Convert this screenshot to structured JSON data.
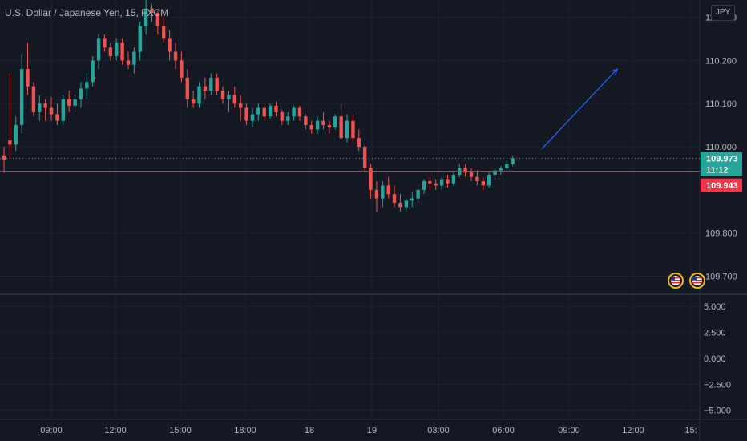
{
  "title": "U.S. Dollar / Japanese Yen, 15, FXCM",
  "currency_button": "JPY",
  "price_badge": {
    "value": "109.973",
    "countdown": "11:12",
    "color": "#26a69a"
  },
  "line_badge": {
    "value": "109.943",
    "color": "#f23645"
  },
  "colors": {
    "up": "#26a69a",
    "down": "#ef5350",
    "background": "#141822",
    "grid": "#1e2230",
    "arrow": "#2962ff"
  },
  "icons": [
    "us-flag-event-icon",
    "us-flag-event-icon"
  ],
  "chart_data": [
    {
      "type": "candlestick",
      "series": [
        {
          "candles": [
            [
              109.98,
              110.0,
              109.94,
              109.97
            ],
            [
              110.015,
              110.17,
              109.975,
              110.005
            ],
            [
              110.005,
              110.07,
              109.99,
              110.05
            ],
            [
              110.05,
              110.215,
              110.03,
              110.18
            ],
            [
              110.18,
              110.24,
              110.12,
              110.14
            ],
            [
              110.14,
              110.15,
              110.07,
              110.08
            ],
            [
              110.08,
              110.12,
              110.06,
              110.1
            ],
            [
              110.1,
              110.11,
              110.06,
              110.09
            ],
            [
              110.09,
              110.115,
              110.06,
              110.075
            ],
            [
              110.075,
              110.1,
              110.05,
              110.06
            ],
            [
              110.06,
              110.12,
              110.05,
              110.11
            ],
            [
              110.11,
              110.13,
              110.08,
              110.095
            ],
            [
              110.095,
              110.12,
              110.08,
              110.11
            ],
            [
              110.11,
              110.15,
              110.09,
              110.135
            ],
            [
              110.135,
              110.17,
              110.11,
              110.15
            ],
            [
              110.15,
              110.21,
              110.14,
              110.2
            ],
            [
              110.2,
              110.26,
              110.18,
              110.25
            ],
            [
              110.25,
              110.26,
              110.22,
              110.23
            ],
            [
              110.23,
              110.24,
              110.2,
              110.21
            ],
            [
              110.21,
              110.25,
              110.2,
              110.24
            ],
            [
              110.24,
              110.25,
              110.19,
              110.2
            ],
            [
              110.2,
              110.22,
              110.18,
              110.19
            ],
            [
              110.19,
              110.23,
              110.17,
              110.22
            ],
            [
              110.22,
              110.29,
              110.2,
              110.28
            ],
            [
              110.28,
              110.34,
              110.26,
              110.32
            ],
            [
              110.32,
              110.33,
              110.29,
              110.31
            ],
            [
              110.31,
              110.315,
              110.26,
              110.28
            ],
            [
              110.28,
              110.3,
              110.24,
              110.25
            ],
            [
              110.25,
              110.27,
              110.2,
              110.22
            ],
            [
              110.22,
              110.24,
              110.18,
              110.2
            ],
            [
              110.2,
              110.22,
              110.15,
              110.16
            ],
            [
              110.16,
              110.18,
              110.09,
              110.11
            ],
            [
              110.11,
              110.13,
              110.09,
              110.1
            ],
            [
              110.1,
              110.15,
              110.09,
              110.14
            ],
            [
              110.14,
              110.16,
              110.11,
              110.13
            ],
            [
              110.13,
              110.17,
              110.12,
              110.16
            ],
            [
              110.16,
              110.17,
              110.12,
              110.13
            ],
            [
              110.13,
              110.14,
              110.1,
              110.11
            ],
            [
              110.11,
              110.13,
              110.08,
              110.12
            ],
            [
              110.12,
              110.14,
              110.09,
              110.1
            ],
            [
              110.1,
              110.12,
              110.06,
              110.09
            ],
            [
              110.09,
              110.1,
              110.05,
              110.06
            ],
            [
              110.06,
              110.09,
              110.045,
              110.075
            ],
            [
              110.075,
              110.1,
              110.06,
              110.09
            ],
            [
              110.09,
              110.095,
              110.06,
              110.07
            ],
            [
              110.07,
              110.1,
              110.065,
              110.095
            ],
            [
              110.095,
              110.105,
              110.07,
              110.08
            ],
            [
              110.08,
              110.085,
              110.05,
              110.06
            ],
            [
              110.06,
              110.08,
              110.05,
              110.07
            ],
            [
              110.07,
              110.095,
              110.06,
              110.09
            ],
            [
              110.09,
              110.095,
              110.06,
              110.07
            ],
            [
              110.07,
              110.075,
              110.04,
              110.05
            ],
            [
              110.05,
              110.06,
              110.03,
              110.04
            ],
            [
              110.04,
              110.07,
              110.03,
              110.06
            ],
            [
              110.06,
              110.08,
              110.04,
              110.05
            ],
            [
              110.05,
              110.06,
              110.03,
              110.045
            ],
            [
              110.045,
              110.075,
              110.04,
              110.07
            ],
            [
              110.07,
              110.1,
              110.015,
              110.02
            ],
            [
              110.02,
              110.075,
              110.01,
              110.06
            ],
            [
              110.06,
              110.075,
              110.01,
              110.02
            ],
            [
              110.02,
              110.04,
              109.99,
              110.0
            ],
            [
              110.0,
              110.005,
              109.94,
              109.95
            ],
            [
              109.95,
              109.96,
              109.88,
              109.9
            ],
            [
              109.9,
              109.92,
              109.85,
              109.88
            ],
            [
              109.88,
              109.92,
              109.86,
              109.91
            ],
            [
              109.91,
              109.93,
              109.88,
              109.89
            ],
            [
              109.89,
              109.91,
              109.86,
              109.87
            ],
            [
              109.87,
              109.89,
              109.85,
              109.86
            ],
            [
              109.86,
              109.88,
              109.85,
              109.875
            ],
            [
              109.875,
              109.895,
              109.86,
              109.88
            ],
            [
              109.88,
              109.91,
              109.87,
              109.9
            ],
            [
              109.9,
              109.925,
              109.89,
              109.92
            ],
            [
              109.92,
              109.93,
              109.9,
              109.915
            ],
            [
              109.915,
              109.925,
              109.9,
              109.91
            ],
            [
              109.91,
              109.93,
              109.9,
              109.925
            ],
            [
              109.925,
              109.935,
              109.905,
              109.915
            ],
            [
              109.915,
              109.94,
              109.91,
              109.935
            ],
            [
              109.935,
              109.96,
              109.93,
              109.95
            ],
            [
              109.95,
              109.96,
              109.93,
              109.94
            ],
            [
              109.94,
              109.95,
              109.92,
              109.93
            ],
            [
              109.93,
              109.945,
              109.91,
              109.92
            ],
            [
              109.92,
              109.93,
              109.9,
              109.91
            ],
            [
              109.91,
              109.94,
              109.905,
              109.935
            ],
            [
              109.935,
              109.95,
              109.925,
              109.945
            ],
            [
              109.945,
              109.955,
              109.935,
              109.95
            ],
            [
              109.95,
              109.97,
              109.945,
              109.96
            ],
            [
              109.96,
              109.98,
              109.955,
              109.973
            ]
          ]
        }
      ],
      "x_tick_labels": [
        "09:00",
        "12:00",
        "15:00",
        "18:00",
        "18",
        "19",
        "03:00",
        "06:00",
        "09:00",
        "12:00",
        "15:"
      ],
      "y_tick_labels": [
        "110.300",
        "110.200",
        "110.100",
        "110.000",
        "109.800",
        "109.700"
      ],
      "ylim": [
        109.66,
        110.34
      ],
      "horizontal_lines": [
        {
          "value": 109.943,
          "color": "#f23645",
          "style": "solid"
        },
        {
          "value": 109.973,
          "color": "#26a69a",
          "style": "dotted"
        }
      ],
      "trend_arrow": {
        "from": [
          109.995
        ],
        "to": [
          110.18
        ]
      }
    },
    {
      "type": "line",
      "y_tick_labels": [
        "5.000",
        "2.500",
        "0.000",
        "−2.500",
        "−5.000"
      ],
      "ylim": [
        -5.8,
        6.1
      ]
    }
  ]
}
